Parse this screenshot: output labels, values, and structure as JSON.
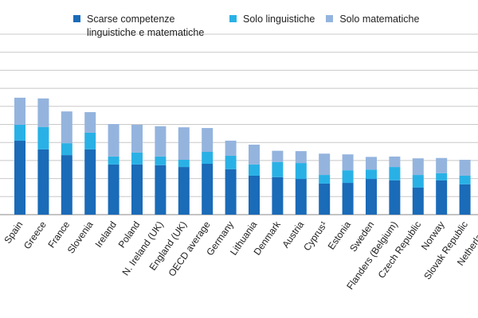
{
  "chart_data": {
    "type": "stacked-bar",
    "categories": [
      "Spain",
      "Greece",
      "France",
      "Slovenia",
      "Ireland",
      "Poland",
      "N. Ireland (UK)",
      "England (UK)",
      "OECD average",
      "Germany",
      "Lithuania",
      "Denmark",
      "Austria",
      "Cyprus¹",
      "Estonia",
      "Sweden",
      "Flanders (Belgium)",
      "Czech Republic",
      "Norway",
      "Slovak Republic",
      "Netherlands"
    ],
    "series": [
      {
        "name": "Scarse competenze linguistiche e matematiche",
        "color": "#1a6bb8",
        "values": [
          20.5,
          18.1,
          16.5,
          18.1,
          13.9,
          13.9,
          13.7,
          13.2,
          14.1,
          12.6,
          10.8,
          10.4,
          9.9,
          8.6,
          8.8,
          9.9,
          9.5,
          7.5,
          9.5,
          8.4,
          7.7
        ]
      },
      {
        "name": "Solo linguistiche",
        "color": "#29b1e6",
        "values": [
          4.4,
          6.2,
          3.3,
          4.6,
          2.2,
          3.3,
          2.4,
          2.0,
          3.3,
          3.7,
          3.1,
          4.2,
          4.4,
          2.4,
          3.5,
          2.6,
          3.7,
          3.5,
          2.0,
          2.4,
          2.4
        ]
      },
      {
        "name": "Solo matematiche",
        "color": "#94b4de",
        "values": [
          7.5,
          7.9,
          8.8,
          5.7,
          9.0,
          7.7,
          8.4,
          9.0,
          6.6,
          4.2,
          5.5,
          3.1,
          3.3,
          5.9,
          4.4,
          3.5,
          2.9,
          4.6,
          4.2,
          4.4,
          4.6
        ]
      }
    ],
    "ylim": [
      0,
      50
    ],
    "yticks": [
      0,
      5,
      10,
      15,
      20,
      25,
      30,
      35,
      40,
      45,
      50
    ],
    "grid": true
  }
}
